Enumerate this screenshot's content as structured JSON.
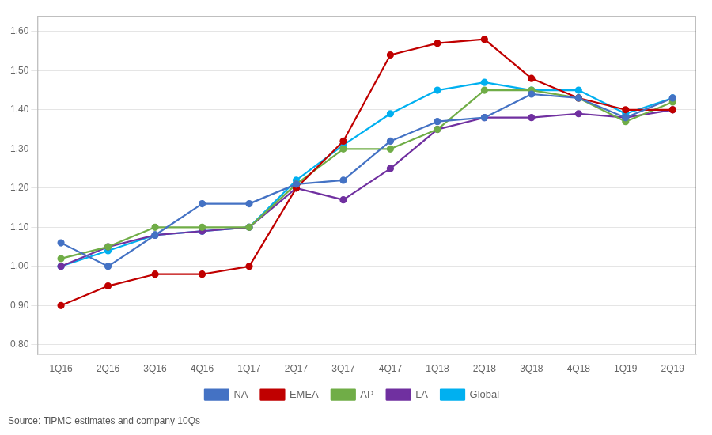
{
  "chart_data": {
    "type": "line",
    "categories": [
      "1Q16",
      "2Q16",
      "3Q16",
      "4Q16",
      "1Q17",
      "2Q17",
      "3Q17",
      "4Q17",
      "1Q18",
      "2Q18",
      "3Q18",
      "4Q18",
      "1Q19",
      "2Q19"
    ],
    "series": [
      {
        "name": "NA",
        "color": "#4472c4",
        "values": [
          1.06,
          1.0,
          1.08,
          1.16,
          1.16,
          1.21,
          1.22,
          1.32,
          1.37,
          1.38,
          1.44,
          1.43,
          1.38,
          1.43
        ]
      },
      {
        "name": "EMEA",
        "color": "#c00000",
        "values": [
          0.9,
          0.95,
          0.98,
          0.98,
          1.0,
          1.2,
          1.32,
          1.54,
          1.57,
          1.58,
          1.48,
          1.43,
          1.4,
          1.4
        ]
      },
      {
        "name": "AP",
        "color": "#70ad47",
        "values": [
          1.02,
          1.05,
          1.1,
          1.1,
          1.1,
          1.21,
          1.3,
          1.3,
          1.35,
          1.45,
          1.45,
          1.43,
          1.37,
          1.42
        ]
      },
      {
        "name": "LA",
        "color": "#7030a0",
        "values": [
          1.0,
          1.05,
          1.08,
          1.09,
          1.1,
          1.2,
          1.17,
          1.25,
          1.35,
          1.38,
          1.38,
          1.39,
          1.38,
          1.4
        ]
      },
      {
        "name": "Global",
        "color": "#00b0f0",
        "values": [
          1.0,
          1.04,
          1.08,
          1.09,
          1.1,
          1.22,
          1.31,
          1.39,
          1.45,
          1.47,
          1.45,
          1.45,
          1.39,
          1.43
        ]
      }
    ],
    "ylim": [
      0.775,
      1.64
    ],
    "yticks": [
      {
        "value": 0.8,
        "label": "0.80"
      },
      {
        "value": 0.9,
        "label": "0.90"
      },
      {
        "value": 1.0,
        "label": "1.00"
      },
      {
        "value": 1.1,
        "label": "1.10"
      },
      {
        "value": 1.2,
        "label": "1.20"
      },
      {
        "value": 1.3,
        "label": "1.30"
      },
      {
        "value": 1.4,
        "label": "1.40"
      },
      {
        "value": 1.5,
        "label": "1.50"
      },
      {
        "value": 1.6,
        "label": "1.60"
      }
    ],
    "grid": true,
    "legend": "bottom",
    "marker": "o",
    "annotations": [
      "Source: TiPMC estimates and company 10Qs"
    ]
  }
}
